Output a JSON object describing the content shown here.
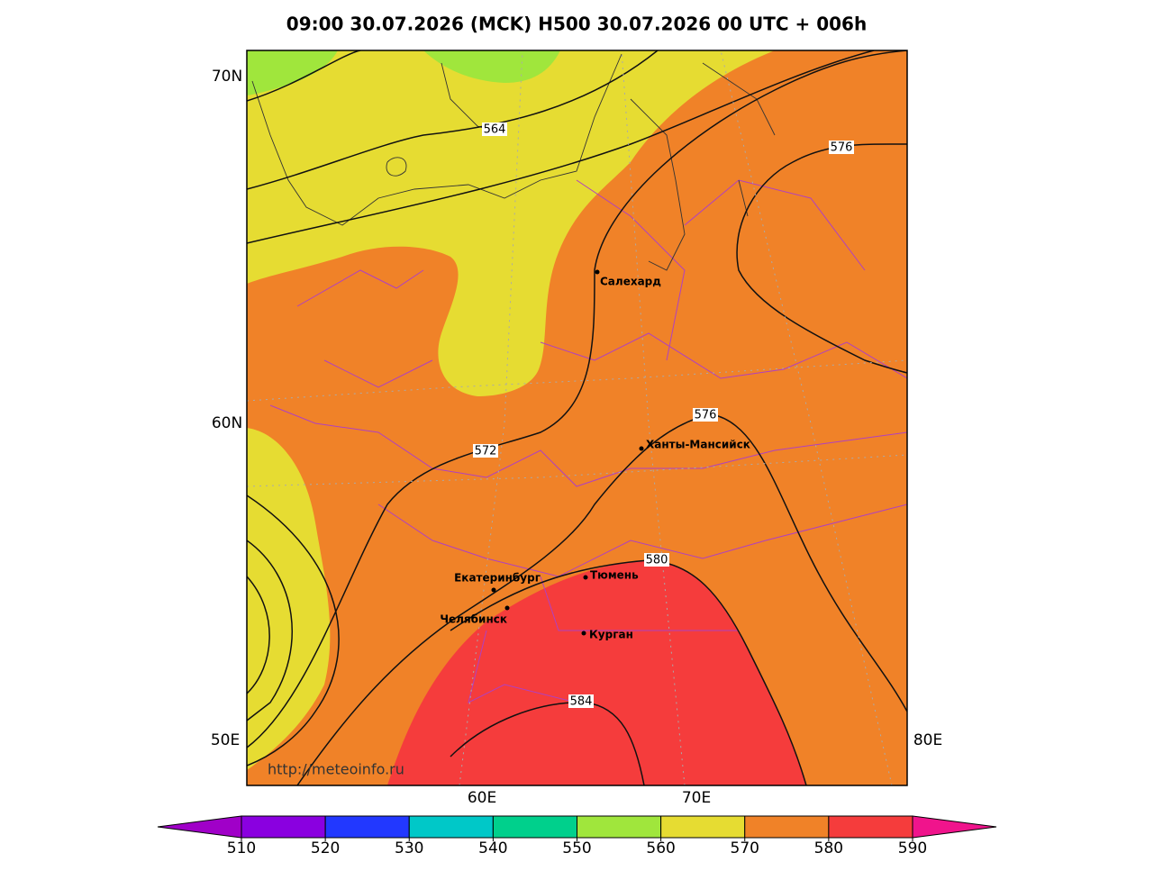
{
  "title": "09:00 30.07.2026 (MCK) H500  30.07.2026 00 UTC + 006h",
  "lat_labels": [
    "70N",
    "60N"
  ],
  "lon_labels": [
    "50E",
    "60E",
    "70E",
    "80E"
  ],
  "contour_labels": [
    "564",
    "572",
    "576",
    "576",
    "580",
    "584"
  ],
  "cities": [
    "Салехард",
    "Ханты-Мансийск",
    "Екатеринбург",
    "Тюмень",
    "Челябинск",
    "Курган"
  ],
  "watermark": "http://meteoinfo.ru",
  "colorbar": {
    "ticks": [
      510,
      520,
      530,
      540,
      550,
      560,
      570,
      580,
      590
    ],
    "colors": [
      "#8a00e0",
      "#2238ff",
      "#00c8c8",
      "#00d08c",
      "#a0e63c",
      "#e6dc32",
      "#f08228",
      "#f53c3c"
    ],
    "under_color": "#a000c8",
    "over_color": "#f0148c"
  }
}
